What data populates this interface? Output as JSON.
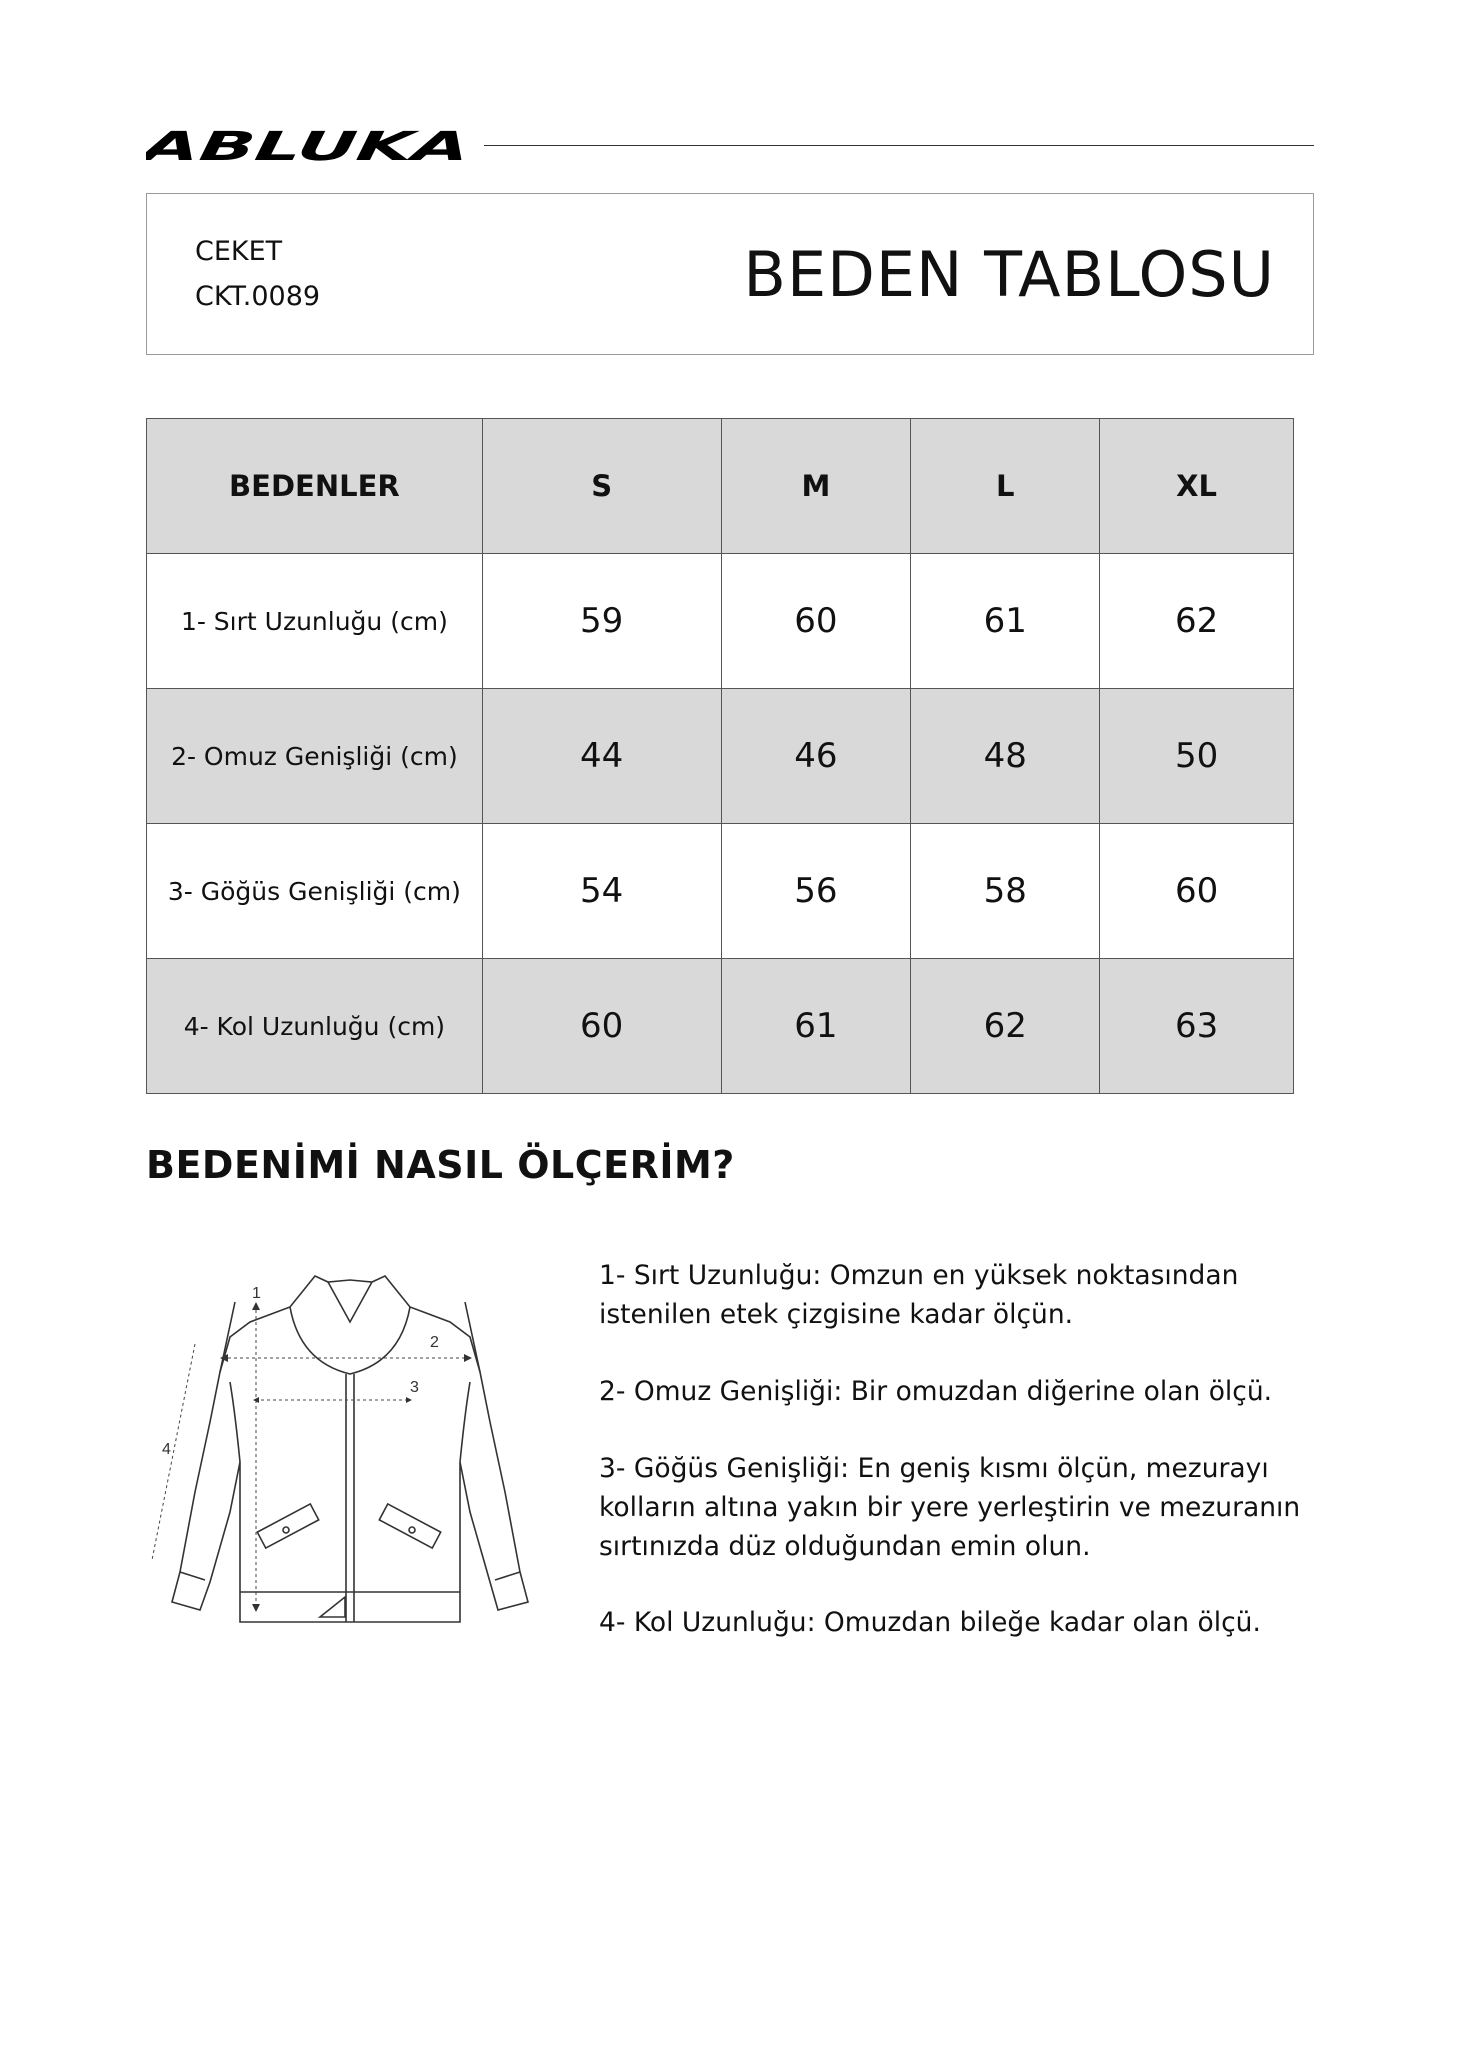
{
  "brand": {
    "logo_text": "ABLUKA"
  },
  "header": {
    "category": "CEKET",
    "code": "CKT.0089",
    "title": "BEDEN TABLOSU"
  },
  "table": {
    "columns": [
      "BEDENLER",
      "S",
      "M",
      "L",
      "XL"
    ],
    "rows": [
      {
        "label": "1- Sırt Uzunluğu (cm)",
        "values": [
          "59",
          "60",
          "61",
          "62"
        ]
      },
      {
        "label": "2- Omuz Genişliği (cm)",
        "values": [
          "44",
          "46",
          "48",
          "50"
        ]
      },
      {
        "label": "3- Göğüs Genişliği (cm)",
        "values": [
          "54",
          "56",
          "58",
          "60"
        ]
      },
      {
        "label": "4- Kol Uzunluğu (cm)",
        "values": [
          "60",
          "61",
          "62",
          "63"
        ]
      }
    ]
  },
  "guide": {
    "heading": "BEDENİMİ NASIL ÖLÇERİM?",
    "diagram_labels": [
      "1",
      "2",
      "3",
      "4"
    ],
    "instructions": [
      [
        "1- Sırt Uzunluğu: Omzun en yüksek noktasından",
        "istenilen etek çizgisine kadar ölçün."
      ],
      [
        "2- Omuz Genişliği: Bir omuzdan diğerine olan ölçü."
      ],
      [
        "3- Göğüs Genişliği: En geniş kısmı ölçün, mezurayı",
        "kolların altına yakın bir yere yerleştirin ve mezuranın",
        "sırtınızda düz olduğundan emin olun."
      ],
      [
        "4- Kol Uzunluğu: Omuzdan bileğe kadar olan ölçü."
      ]
    ]
  },
  "colors": {
    "header_fill": "#d9d9d9",
    "text": "#111111"
  }
}
